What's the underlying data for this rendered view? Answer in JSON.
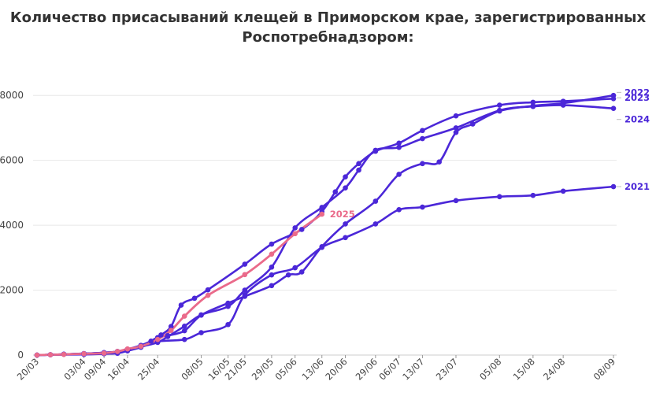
{
  "chart_data": {
    "type": "line",
    "title_lines": [
      "Количество присасываний клещей в Приморском крае, зарегистрированных",
      "Роспотребнадзором:"
    ],
    "xlabel": "",
    "ylabel": "",
    "ylim": [
      0,
      9000
    ],
    "y_ticks": [
      0,
      2000,
      4000,
      6000,
      8000
    ],
    "grid": "horizontal",
    "x_axis_dates": [
      "20/03",
      "03/04",
      "09/04",
      "16/04",
      "25/04",
      "08/05",
      "16/05",
      "21/05",
      "29/05",
      "05/06",
      "13/06",
      "20/06",
      "29/06",
      "06/07",
      "13/07",
      "23/07",
      "05/08",
      "15/08",
      "24/08",
      "08/09"
    ],
    "colors": {
      "main": "#4b27d8",
      "highlight": "#ea6a8a",
      "grid": "#e8e8e8",
      "text": "#333333"
    },
    "series": [
      {
        "name": "2022",
        "color": "#4b27d8",
        "points": [
          [
            "20/03",
            0
          ],
          [
            "24/03",
            10
          ],
          [
            "28/03",
            25
          ],
          [
            "03/04",
            45
          ],
          [
            "09/04",
            75
          ],
          [
            "13/04",
            110
          ],
          [
            "16/04",
            180
          ],
          [
            "20/04",
            300
          ],
          [
            "23/04",
            430
          ],
          [
            "26/04",
            620
          ],
          [
            "29/04",
            880
          ],
          [
            "02/05",
            1540
          ],
          [
            "06/05",
            1750
          ],
          [
            "10/05",
            2010
          ],
          [
            "21/05",
            2800
          ],
          [
            "29/05",
            3420
          ],
          [
            "07/06",
            3870
          ],
          [
            "13/06",
            4420
          ],
          [
            "17/06",
            5030
          ],
          [
            "20/06",
            5490
          ],
          [
            "24/06",
            5900
          ],
          [
            "29/06",
            6280
          ],
          [
            "06/07",
            6530
          ],
          [
            "13/07",
            6920
          ],
          [
            "23/07",
            7370
          ],
          [
            "05/08",
            7700
          ],
          [
            "15/08",
            7790
          ],
          [
            "24/08",
            7820
          ],
          [
            "08/09",
            7900
          ]
        ]
      },
      {
        "name": "2023",
        "color": "#4b27d8",
        "points": [
          [
            "20/03",
            0
          ],
          [
            "24/03",
            10
          ],
          [
            "28/03",
            25
          ],
          [
            "03/04",
            45
          ],
          [
            "09/04",
            75
          ],
          [
            "13/04",
            110
          ],
          [
            "16/04",
            180
          ],
          [
            "20/04",
            270
          ],
          [
            "25/04",
            540
          ],
          [
            "28/04",
            600
          ],
          [
            "03/05",
            750
          ],
          [
            "08/05",
            1230
          ],
          [
            "16/05",
            1600
          ],
          [
            "21/05",
            1810
          ],
          [
            "29/05",
            2140
          ],
          [
            "03/06",
            2470
          ],
          [
            "07/06",
            2560
          ],
          [
            "13/06",
            3340
          ],
          [
            "20/06",
            4040
          ],
          [
            "29/06",
            4740
          ],
          [
            "06/07",
            5570
          ],
          [
            "13/07",
            5900
          ],
          [
            "18/07",
            5950
          ],
          [
            "23/07",
            6860
          ],
          [
            "28/07",
            7120
          ],
          [
            "05/08",
            7520
          ],
          [
            "15/08",
            7680
          ],
          [
            "24/08",
            7760
          ],
          [
            "08/09",
            8000
          ]
        ]
      },
      {
        "name": "2024",
        "color": "#4b27d8",
        "points": [
          [
            "20/03",
            0
          ],
          [
            "24/03",
            10
          ],
          [
            "28/03",
            25
          ],
          [
            "03/04",
            45
          ],
          [
            "09/04",
            70
          ],
          [
            "13/04",
            100
          ],
          [
            "16/04",
            170
          ],
          [
            "20/04",
            260
          ],
          [
            "25/04",
            390
          ],
          [
            "28/04",
            570
          ],
          [
            "03/05",
            890
          ],
          [
            "08/05",
            1240
          ],
          [
            "16/05",
            1500
          ],
          [
            "21/05",
            2000
          ],
          [
            "29/05",
            2710
          ],
          [
            "05/06",
            3920
          ],
          [
            "13/06",
            4550
          ],
          [
            "20/06",
            5150
          ],
          [
            "24/06",
            5700
          ],
          [
            "29/06",
            6310
          ],
          [
            "06/07",
            6400
          ],
          [
            "13/07",
            6670
          ],
          [
            "23/07",
            7000
          ],
          [
            "05/08",
            7540
          ],
          [
            "15/08",
            7660
          ],
          [
            "24/08",
            7700
          ],
          [
            "08/09",
            7600
          ]
        ]
      },
      {
        "name": "2021",
        "color": "#4b27d8",
        "points": [
          [
            "20/03",
            0
          ],
          [
            "03/04",
            20
          ],
          [
            "09/04",
            40
          ],
          [
            "13/04",
            55
          ],
          [
            "16/04",
            130
          ],
          [
            "20/04",
            240
          ],
          [
            "25/04",
            420
          ],
          [
            "03/05",
            480
          ],
          [
            "08/05",
            690
          ],
          [
            "16/05",
            940
          ],
          [
            "21/05",
            1850
          ],
          [
            "29/05",
            2470
          ],
          [
            "05/06",
            2690
          ],
          [
            "13/06",
            3320
          ],
          [
            "20/06",
            3620
          ],
          [
            "29/06",
            4040
          ],
          [
            "06/07",
            4480
          ],
          [
            "13/07",
            4560
          ],
          [
            "23/07",
            4760
          ],
          [
            "05/08",
            4880
          ],
          [
            "15/08",
            4920
          ],
          [
            "24/08",
            5050
          ],
          [
            "08/09",
            5190
          ]
        ]
      },
      {
        "name": "2025",
        "color": "#ea6a8a",
        "points": [
          [
            "20/03",
            0
          ],
          [
            "24/03",
            10
          ],
          [
            "28/03",
            20
          ],
          [
            "03/04",
            40
          ],
          [
            "09/04",
            60
          ],
          [
            "13/04",
            110
          ],
          [
            "16/04",
            190
          ],
          [
            "20/04",
            270
          ],
          [
            "25/04",
            480
          ],
          [
            "29/04",
            760
          ],
          [
            "03/05",
            1200
          ],
          [
            "10/05",
            1840
          ],
          [
            "21/05",
            2480
          ],
          [
            "29/05",
            3110
          ],
          [
            "05/06",
            3740
          ],
          [
            "13/06",
            4340
          ]
        ]
      }
    ],
    "end_labels": [
      {
        "series": "2022",
        "text": "2022"
      },
      {
        "series": "2023",
        "text": "2023"
      },
      {
        "series": "2024",
        "text": "2024"
      },
      {
        "series": "2021",
        "text": "2021"
      },
      {
        "series": "2025",
        "text": "2025"
      }
    ]
  }
}
